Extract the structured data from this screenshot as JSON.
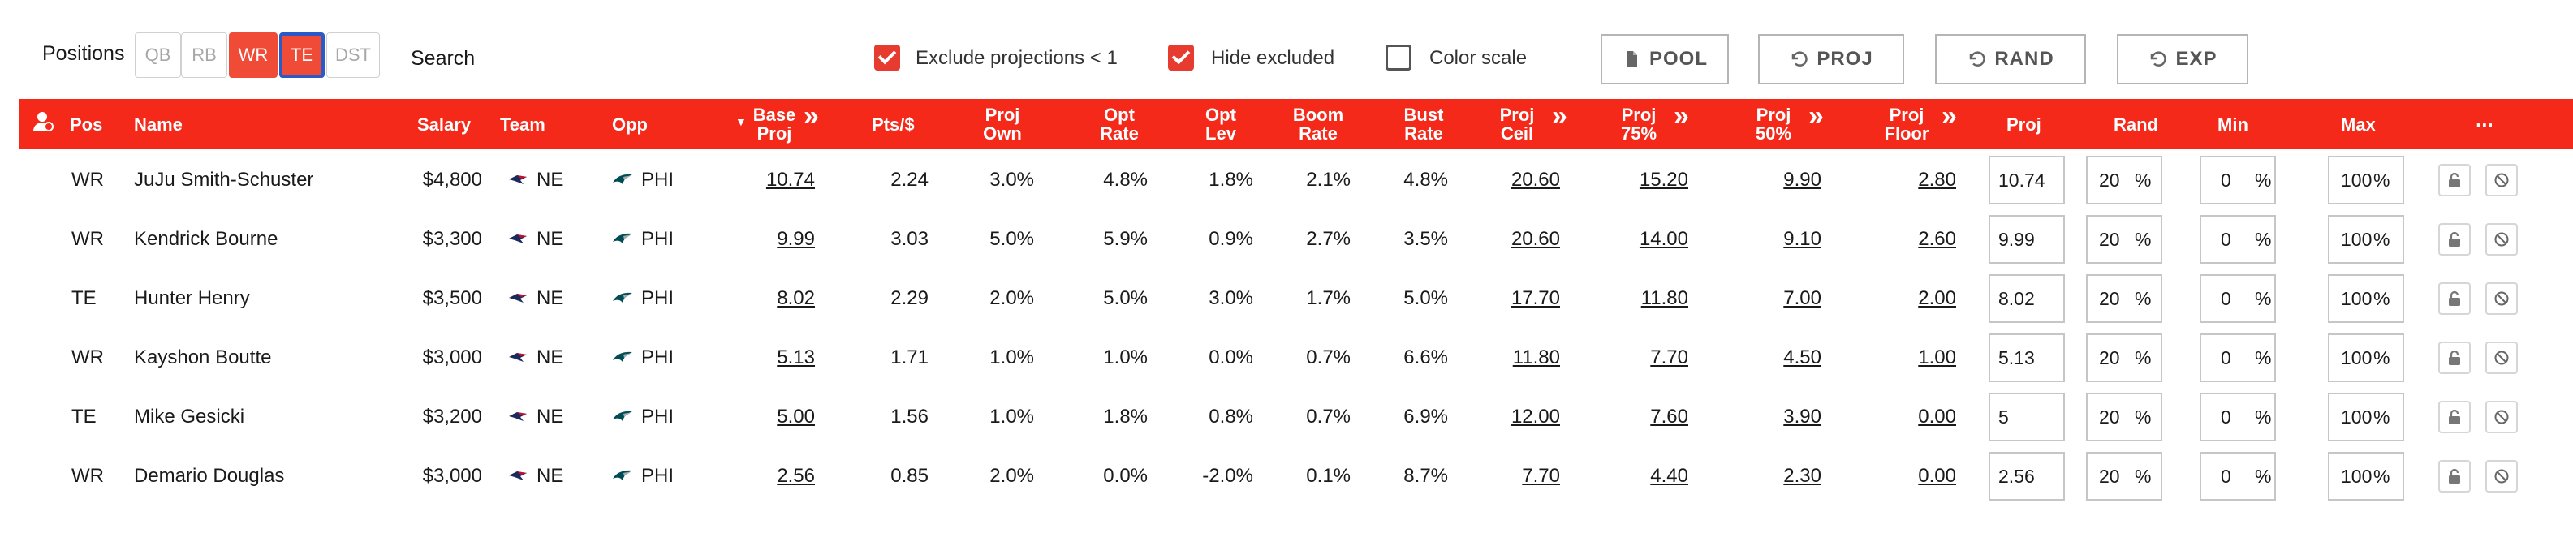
{
  "toolbar": {
    "positions_label": "Positions",
    "positions": [
      {
        "label": "QB",
        "state": "inactive"
      },
      {
        "label": "RB",
        "state": "inactive"
      },
      {
        "label": "WR",
        "state": "active"
      },
      {
        "label": "TE",
        "state": "focused"
      },
      {
        "label": "DST",
        "state": "inactive"
      }
    ],
    "search_label": "Search",
    "search_value": "",
    "exclude_label": "Exclude projections < 1",
    "exclude_checked": true,
    "hide_label": "Hide excluded",
    "hide_checked": true,
    "color_scale_label": "Color scale",
    "color_scale_checked": false,
    "buttons": {
      "pool": "POOL",
      "proj": "PROJ",
      "rand": "RAND",
      "exp": "EXP"
    }
  },
  "table": {
    "headers": {
      "pos": "Pos",
      "name": "Name",
      "salary": "Salary",
      "team": "Team",
      "opp": "Opp",
      "base_proj": [
        "Base",
        "Proj"
      ],
      "pts": "Pts/$",
      "proj_own": [
        "Proj",
        "Own"
      ],
      "opt_rate": [
        "Opt",
        "Rate"
      ],
      "opt_lev": [
        "Opt",
        "Lev"
      ],
      "boom": [
        "Boom",
        "Rate"
      ],
      "bust": [
        "Bust",
        "Rate"
      ],
      "ceil": [
        "Proj",
        "Ceil"
      ],
      "p75": [
        "Proj",
        "75%"
      ],
      "p50": [
        "Proj",
        "50%"
      ],
      "floor": [
        "Proj",
        "Floor"
      ],
      "proj": "Proj",
      "rand": "Rand",
      "min": "Min",
      "max": "Max",
      "more": "..."
    },
    "rows": [
      {
        "pos": "WR",
        "name": "JuJu Smith-Schuster",
        "salary": "$4,800",
        "team": "NE",
        "opp": "PHI",
        "base_proj": "10.74",
        "pts": "2.24",
        "own": "3.0%",
        "opt_rate": "4.8%",
        "opt_lev": "1.8%",
        "boom": "2.1%",
        "bust": "4.8%",
        "ceil": "20.60",
        "p75": "15.20",
        "p50": "9.90",
        "floor": "2.80",
        "proj_in": "10.74",
        "rand_in": "20",
        "min_in": "0",
        "max_in": "100"
      },
      {
        "pos": "WR",
        "name": "Kendrick Bourne",
        "salary": "$3,300",
        "team": "NE",
        "opp": "PHI",
        "base_proj": "9.99",
        "pts": "3.03",
        "own": "5.0%",
        "opt_rate": "5.9%",
        "opt_lev": "0.9%",
        "boom": "2.7%",
        "bust": "3.5%",
        "ceil": "20.60",
        "p75": "14.00",
        "p50": "9.10",
        "floor": "2.60",
        "proj_in": "9.99",
        "rand_in": "20",
        "min_in": "0",
        "max_in": "100"
      },
      {
        "pos": "TE",
        "name": "Hunter Henry",
        "salary": "$3,500",
        "team": "NE",
        "opp": "PHI",
        "base_proj": "8.02",
        "pts": "2.29",
        "own": "2.0%",
        "opt_rate": "5.0%",
        "opt_lev": "3.0%",
        "boom": "1.7%",
        "bust": "5.0%",
        "ceil": "17.70",
        "p75": "11.80",
        "p50": "7.00",
        "floor": "2.00",
        "proj_in": "8.02",
        "rand_in": "20",
        "min_in": "0",
        "max_in": "100"
      },
      {
        "pos": "WR",
        "name": "Kayshon Boutte",
        "salary": "$3,000",
        "team": "NE",
        "opp": "PHI",
        "base_proj": "5.13",
        "pts": "1.71",
        "own": "1.0%",
        "opt_rate": "1.0%",
        "opt_lev": "0.0%",
        "boom": "0.7%",
        "bust": "6.6%",
        "ceil": "11.80",
        "p75": "7.70",
        "p50": "4.50",
        "floor": "1.00",
        "proj_in": "5.13",
        "rand_in": "20",
        "min_in": "0",
        "max_in": "100"
      },
      {
        "pos": "TE",
        "name": "Mike Gesicki",
        "salary": "$3,200",
        "team": "NE",
        "opp": "PHI",
        "base_proj": "5.00",
        "pts": "1.56",
        "own": "1.0%",
        "opt_rate": "1.8%",
        "opt_lev": "0.8%",
        "boom": "0.7%",
        "bust": "6.9%",
        "ceil": "12.00",
        "p75": "7.60",
        "p50": "3.90",
        "floor": "0.00",
        "proj_in": "5",
        "rand_in": "20",
        "min_in": "0",
        "max_in": "100"
      },
      {
        "pos": "WR",
        "name": "Demario Douglas",
        "salary": "$3,000",
        "team": "NE",
        "opp": "PHI",
        "base_proj": "2.56",
        "pts": "0.85",
        "own": "2.0%",
        "opt_rate": "0.0%",
        "opt_lev": "-2.0%",
        "boom": "0.1%",
        "bust": "8.7%",
        "ceil": "7.70",
        "p75": "4.40",
        "p50": "2.30",
        "floor": "0.00",
        "proj_in": "2.56",
        "rand_in": "20",
        "min_in": "0",
        "max_in": "100"
      }
    ],
    "pct_symbol": "%"
  },
  "colors": {
    "accent": "#f4291a",
    "active": "#ef4b37",
    "focus": "#2a59c8"
  },
  "icons": {
    "team": "patriots-logo-icon",
    "opp": "eagles-logo-icon",
    "lock": "unlock-icon",
    "exclude": "ban-icon"
  }
}
